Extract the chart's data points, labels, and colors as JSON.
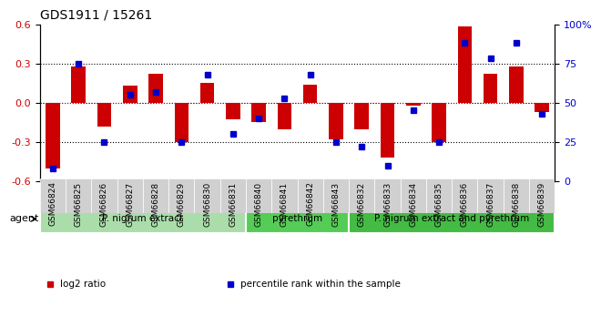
{
  "title": "GDS1911 / 15261",
  "categories": [
    "GSM66824",
    "GSM66825",
    "GSM66826",
    "GSM66827",
    "GSM66828",
    "GSM66829",
    "GSM66830",
    "GSM66831",
    "GSM66840",
    "GSM66841",
    "GSM66842",
    "GSM66843",
    "GSM66832",
    "GSM66833",
    "GSM66834",
    "GSM66835",
    "GSM66836",
    "GSM66837",
    "GSM66838",
    "GSM66839"
  ],
  "log2_ratio": [
    -0.5,
    0.28,
    -0.18,
    0.13,
    0.22,
    -0.3,
    0.15,
    -0.13,
    -0.15,
    -0.2,
    0.14,
    -0.28,
    -0.2,
    -0.42,
    -0.02,
    -0.3,
    0.58,
    0.22,
    0.28,
    -0.07
  ],
  "percentile_rank": [
    8,
    75,
    25,
    55,
    57,
    25,
    68,
    30,
    40,
    53,
    68,
    25,
    22,
    10,
    45,
    25,
    88,
    78,
    88,
    43
  ],
  "ylim_left": [
    -0.6,
    0.6
  ],
  "ylim_right": [
    0,
    100
  ],
  "yticks_left": [
    -0.6,
    -0.3,
    0.0,
    0.3,
    0.6
  ],
  "yticks_right": [
    0,
    25,
    50,
    75,
    100
  ],
  "ytick_labels_right": [
    "0",
    "25",
    "50",
    "75",
    "100%"
  ],
  "bar_color": "#cc0000",
  "dot_color": "#0000cc",
  "hline_color": "#cc0000",
  "hline_style": "dotted",
  "groups": [
    {
      "label": "P. nigrum extract",
      "start": 0,
      "end": 7,
      "color": "#aaddaa"
    },
    {
      "label": "pyrethrum",
      "start": 8,
      "end": 11,
      "color": "#55cc55"
    },
    {
      "label": "P. nigrum extract and pyrethrum",
      "start": 12,
      "end": 19,
      "color": "#44bb44"
    }
  ],
  "legend_items": [
    {
      "label": "log2 ratio",
      "color": "#cc0000"
    },
    {
      "label": "percentile rank within the sample",
      "color": "#0000cc"
    }
  ],
  "agent_label": "agent",
  "background_color": "#ffffff",
  "tick_label_color_left": "#cc0000",
  "tick_label_color_right": "#0000cc"
}
